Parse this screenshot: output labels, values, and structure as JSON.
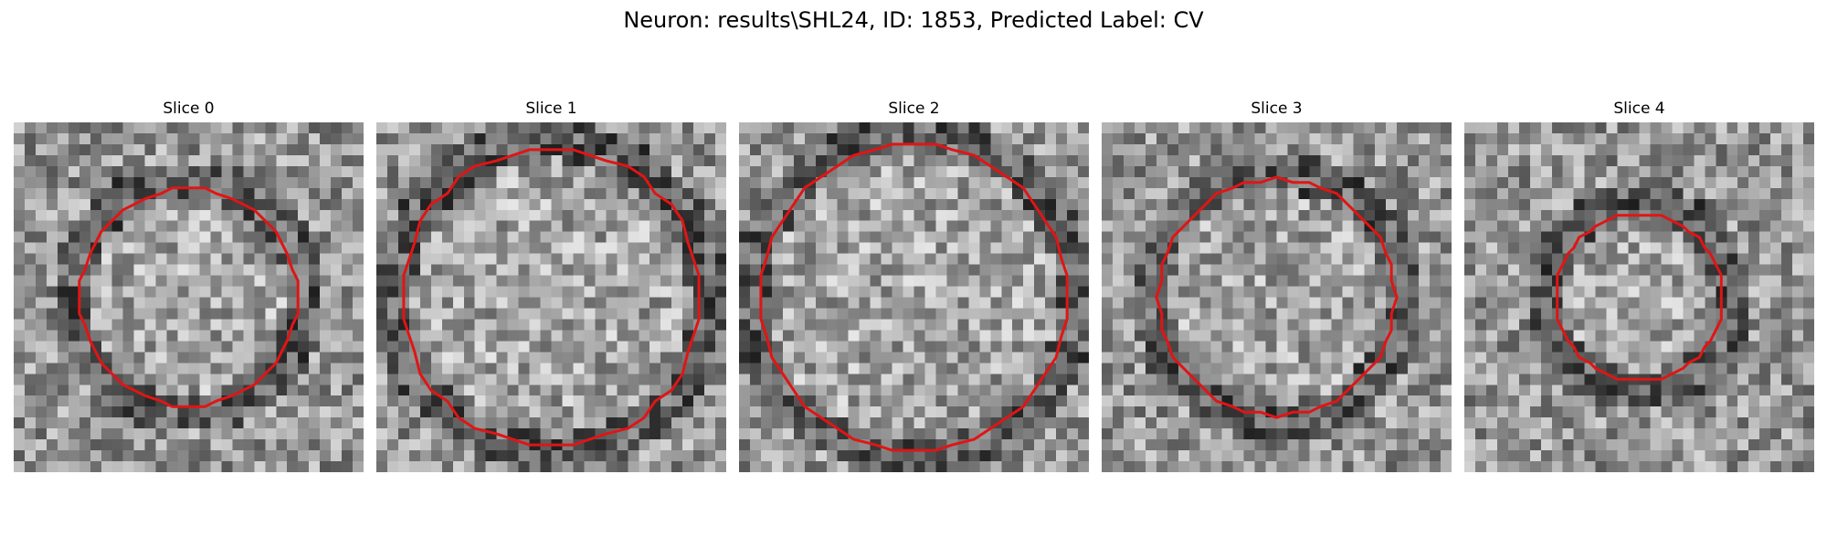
{
  "figure": {
    "title": "Neuron: results\\SHL24, ID: 1853, Predicted Label: CV"
  },
  "panels": [
    {
      "title": "Slice 0",
      "scale": 0.71,
      "outline_color": "#e01515"
    },
    {
      "title": "Slice 1",
      "scale": 0.97,
      "outline_color": "#e01515"
    },
    {
      "title": "Slice 2",
      "scale": 1.0,
      "outline_color": "#e01515"
    },
    {
      "title": "Slice 3",
      "scale": 0.77,
      "outline_color": "#e01515"
    },
    {
      "title": "Slice 4",
      "scale": 0.55,
      "outline_color": "#e01515"
    }
  ],
  "image": {
    "grid": 32,
    "colormap": "gray"
  }
}
